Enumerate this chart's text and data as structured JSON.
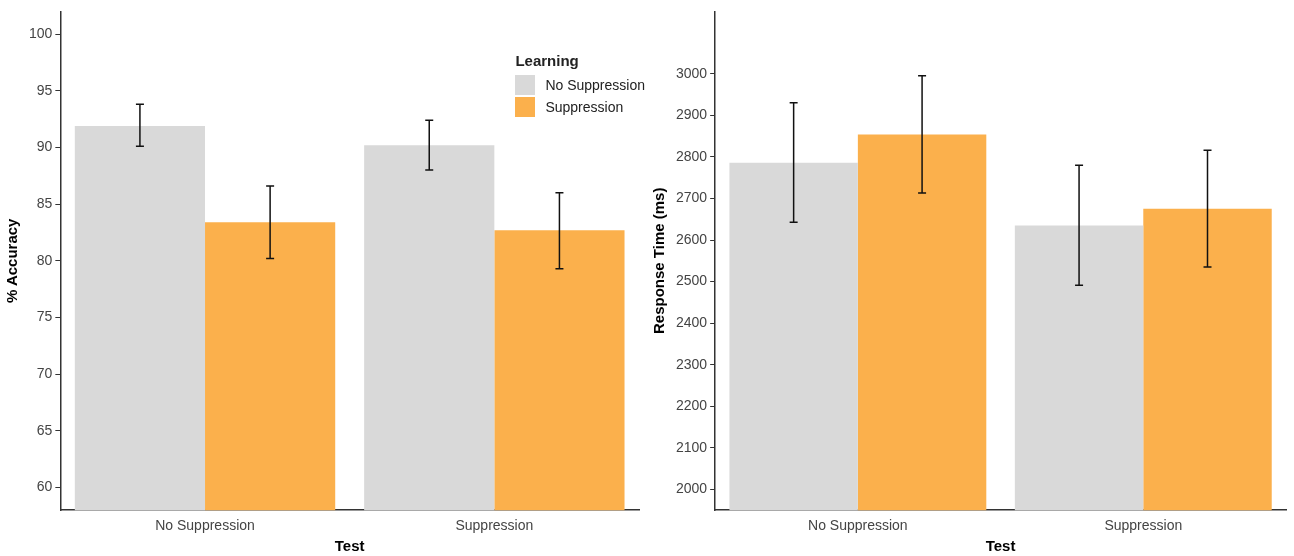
{
  "chart_data": [
    {
      "type": "bar",
      "xlabel": "Test",
      "ylabel": "% Accuracy",
      "legend_title": "Learning",
      "legend": "top right",
      "grid": false,
      "categories": [
        "No Suppression",
        "Suppression"
      ],
      "series": [
        {
          "name": "No Suppression",
          "color": "#d9d9d9",
          "values": [
            91.9,
            90.2
          ],
          "errors": [
            [
              90.1,
              93.8
            ],
            [
              88.0,
              92.4
            ]
          ]
        },
        {
          "name": "Suppression",
          "color": "#fbb04c",
          "values": [
            83.4,
            82.7
          ],
          "errors": [
            [
              80.2,
              86.6
            ],
            [
              79.3,
              86.0
            ]
          ]
        }
      ],
      "ylim": [
        58,
        102
      ],
      "yticks": [
        60,
        65,
        70,
        75,
        80,
        85,
        90,
        95,
        100
      ]
    },
    {
      "type": "bar",
      "xlabel": "Test",
      "ylabel": "Response Time (ms)",
      "grid": false,
      "categories": [
        "No Suppression",
        "Suppression"
      ],
      "series": [
        {
          "color": "#d9d9d9",
          "values": [
            2786,
            2635
          ],
          "errors": [
            [
              2643,
              2930
            ],
            [
              2491,
              2780
            ]
          ]
        },
        {
          "color": "#fbb04c",
          "values": [
            2854,
            2675
          ],
          "errors": [
            [
              2713,
              2995
            ],
            [
              2535,
              2816
            ]
          ]
        }
      ],
      "ylim": [
        1950,
        3150
      ],
      "yticks": [
        2000,
        2100,
        2200,
        2300,
        2400,
        2500,
        2600,
        2700,
        2800,
        2900,
        3000
      ]
    }
  ]
}
